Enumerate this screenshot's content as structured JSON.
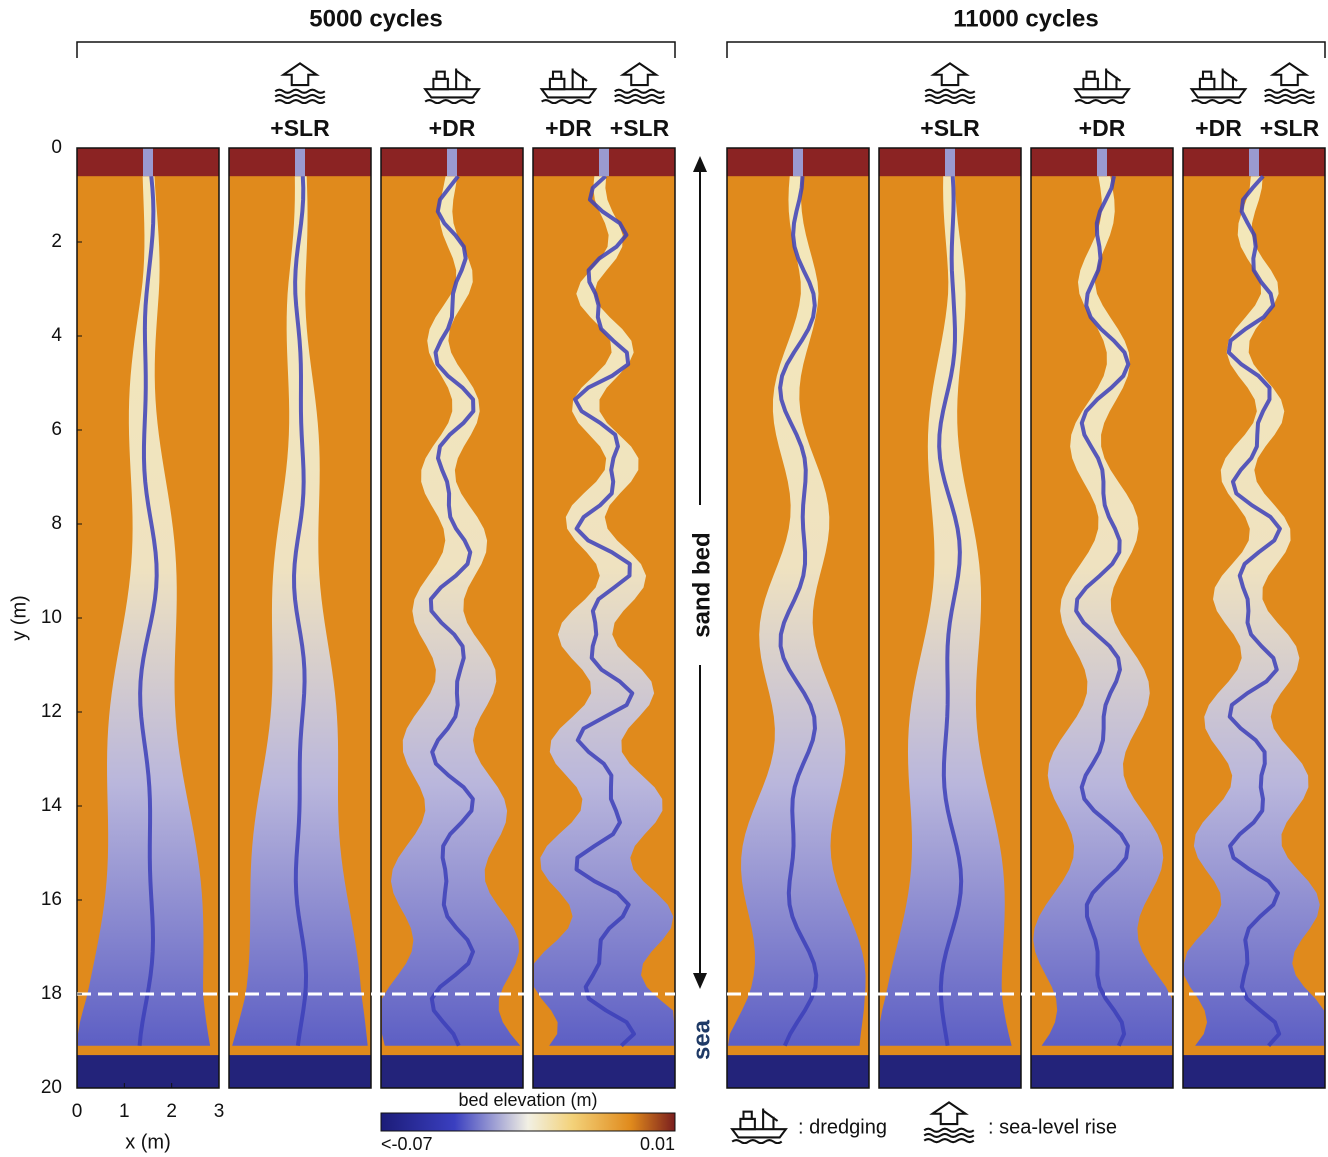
{
  "figure": {
    "groups": [
      {
        "title": "5000 cycles",
        "panels": [
          {
            "labels": []
          },
          {
            "labels": [
              "+SLR"
            ]
          },
          {
            "labels": [
              "+DR"
            ]
          },
          {
            "labels": [
              "+DR",
              "+SLR"
            ]
          }
        ]
      },
      {
        "title": "11000 cycles",
        "panels": [
          {
            "labels": []
          },
          {
            "labels": [
              "+SLR"
            ]
          },
          {
            "labels": [
              "+DR"
            ]
          },
          {
            "labels": [
              "+DR",
              "+SLR"
            ]
          }
        ]
      }
    ],
    "y_axis": {
      "label": "y (m)",
      "lim": [
        0,
        20
      ],
      "ticks": [
        0,
        2,
        4,
        6,
        8,
        10,
        12,
        14,
        16,
        18,
        20
      ]
    },
    "x_axis": {
      "label": "x (m)",
      "lim": [
        0,
        3
      ],
      "ticks": [
        0,
        1,
        2,
        3
      ]
    },
    "colorbar": {
      "label": "bed elevation (m)",
      "min_label": "<-0.07",
      "max_label": "0.01"
    },
    "annotations": {
      "sand_bed": "sand bed",
      "sea": "sea"
    },
    "legend": {
      "dredging": ": dredging",
      "sea_level_rise": ": sea-level rise"
    }
  }
}
